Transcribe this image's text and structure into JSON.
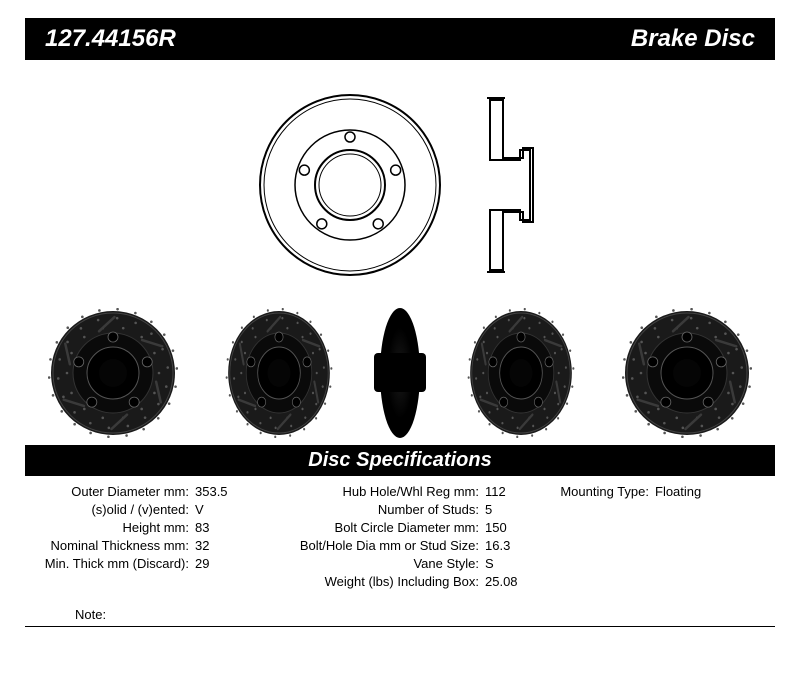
{
  "header": {
    "part_number": "127.44156R",
    "product_type": "Brake Disc"
  },
  "spec_title": "Disc Specifications",
  "specs_col1": [
    {
      "label": "Outer Diameter mm:",
      "value": "353.5"
    },
    {
      "label": "(s)olid / (v)ented:",
      "value": "V"
    },
    {
      "label": "Height mm:",
      "value": "83"
    },
    {
      "label": "Nominal Thickness mm:",
      "value": "32"
    },
    {
      "label": "Min. Thick mm (Discard):",
      "value": "29"
    }
  ],
  "specs_col2": [
    {
      "label": "Hub Hole/Whl Reg mm:",
      "value": "112"
    },
    {
      "label": "Number of Studs:",
      "value": "5"
    },
    {
      "label": "Bolt Circle Diameter mm:",
      "value": "150"
    },
    {
      "label": "Bolt/Hole Dia mm or Stud Size:",
      "value": "16.3"
    },
    {
      "label": "Vane Style:",
      "value": "S"
    },
    {
      "label": "Weight (lbs) Including Box:",
      "value": "25.08"
    }
  ],
  "specs_col3": [
    {
      "label": "Mounting Type:",
      "value": "Floating"
    }
  ],
  "note_label": "Note:",
  "note_value": "",
  "colors": {
    "header_bg": "#000000",
    "header_fg": "#ffffff",
    "page_bg": "#ffffff",
    "text": "#000000"
  },
  "diagram": {
    "front": {
      "outer_r": 90,
      "hub_r": 35,
      "bolt_circle_r": 48,
      "bolt_r": 5,
      "bolt_count": 5,
      "stroke": "#000000",
      "stroke_width": 2
    },
    "side": {
      "width": 60,
      "height": 180
    }
  },
  "photos": {
    "disc": {
      "outer_r": 62,
      "hub_r": 26,
      "bolt_circle_r": 36,
      "bolt_r": 5,
      "bolt_count": 5,
      "fill": "#1a1a1a",
      "hub_fill": "#0a0a0a"
    }
  }
}
